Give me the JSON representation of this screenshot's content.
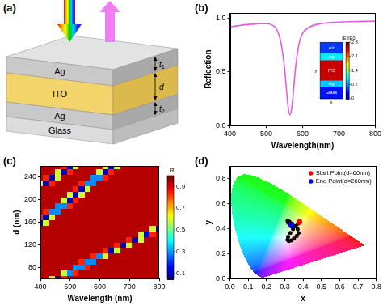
{
  "diagram": {
    "panel": "(a)",
    "layers": [
      {
        "label": "Ag",
        "thickness": "t1"
      },
      {
        "label": "ITO",
        "thickness": "d"
      },
      {
        "label": "Ag",
        "thickness": "t2"
      },
      {
        "label": "Glass"
      }
    ]
  },
  "chart_data": [
    {
      "panel": "(b)",
      "type": "line",
      "x_label": "Wavelength(nm)",
      "y_label": "Reflection",
      "x": [
        400,
        420,
        440,
        460,
        480,
        500,
        520,
        530,
        540,
        550,
        555,
        560,
        565,
        570,
        575,
        580,
        590,
        600,
        620,
        650,
        700,
        750,
        800
      ],
      "values": [
        0.92,
        0.93,
        0.94,
        0.945,
        0.95,
        0.95,
        0.93,
        0.89,
        0.78,
        0.55,
        0.36,
        0.18,
        0.1,
        0.16,
        0.33,
        0.52,
        0.76,
        0.86,
        0.92,
        0.95,
        0.965,
        0.97,
        0.975
      ],
      "color": "#e15ce1",
      "xlim": [
        400,
        800
      ],
      "xticks": [
        400,
        500,
        600,
        700,
        800
      ],
      "ylim": [
        0,
        1.05
      ],
      "yticks": [
        {
          "value": 0,
          "label": "0.0"
        },
        0.5,
        {
          "value": 1,
          "label": "1.0"
        }
      ],
      "grid": false,
      "inset": {
        "type": "heatmap",
        "x_label": "x",
        "y_label": "y",
        "layers": [
          {
            "label": "Air",
            "value": 0.5
          },
          {
            "label": "Ag",
            "value": 1.0
          },
          {
            "label": "ITO",
            "value": 2.6
          },
          {
            "label": "Ag",
            "value": 0.9
          },
          {
            "label": "Glass",
            "value": 0.4
          }
        ],
        "colorbar": {
          "label": "|E|/|E0|",
          "range": [
            0,
            2.8
          ],
          "ticks": [
            0,
            0.7,
            1.4,
            2.1,
            2.8
          ]
        }
      }
    },
    {
      "panel": "(c)",
      "type": "heatmap",
      "x_label": "Wavelength (nm)",
      "y_label": "d (nm)",
      "xlim": [
        400,
        800
      ],
      "xticks": [
        400,
        500,
        600,
        700,
        800
      ],
      "ylim": [
        60,
        260
      ],
      "yticks": [
        80,
        120,
        160,
        200,
        240
      ],
      "grid": false,
      "cells": {
        "x": [
          400,
          420,
          440,
          460,
          480,
          500,
          520,
          540,
          560,
          580,
          600,
          620,
          640,
          660,
          680,
          700,
          720,
          740,
          760,
          780,
          800
        ],
        "y": [
          60,
          70,
          80,
          90,
          100,
          110,
          120,
          130,
          140,
          150,
          160,
          170,
          180,
          190,
          200,
          210,
          220,
          230,
          240,
          250,
          260
        ],
        "values": [
          [
            0.95,
            0.95,
            0.6,
            0.1,
            0.85,
            0.95,
            0.95,
            0.95,
            0.95,
            0.95,
            0.95,
            0.95,
            0.95,
            0.95,
            0.95,
            0.95,
            0.95,
            0.95,
            0.95,
            0.95,
            0.95
          ],
          [
            0.95,
            0.95,
            0.95,
            0.95,
            0.6,
            0.3,
            0.85,
            0.95,
            0.95,
            0.95,
            0.95,
            0.95,
            0.95,
            0.95,
            0.95,
            0.95,
            0.95,
            0.95,
            0.95,
            0.95,
            0.95
          ],
          [
            0.95,
            0.95,
            0.95,
            0.95,
            0.95,
            0.95,
            0.3,
            0.3,
            0.85,
            0.95,
            0.95,
            0.95,
            0.95,
            0.95,
            0.95,
            0.95,
            0.95,
            0.95,
            0.95,
            0.95,
            0.95
          ],
          [
            0.95,
            0.95,
            0.95,
            0.95,
            0.95,
            0.95,
            0.95,
            0.85,
            0.3,
            0.3,
            0.95,
            0.95,
            0.95,
            0.95,
            0.95,
            0.95,
            0.95,
            0.95,
            0.95,
            0.95,
            0.95
          ],
          [
            0.95,
            0.95,
            0.95,
            0.95,
            0.95,
            0.95,
            0.95,
            0.95,
            0.95,
            0.85,
            0.3,
            0.6,
            0.95,
            0.95,
            0.95,
            0.95,
            0.95,
            0.95,
            0.95,
            0.95,
            0.95
          ],
          [
            0.95,
            0.95,
            0.95,
            0.95,
            0.95,
            0.95,
            0.95,
            0.95,
            0.95,
            0.95,
            0.95,
            0.85,
            0.1,
            0.6,
            0.95,
            0.95,
            0.95,
            0.95,
            0.95,
            0.95,
            0.95
          ],
          [
            0.95,
            0.95,
            0.95,
            0.95,
            0.95,
            0.95,
            0.95,
            0.95,
            0.95,
            0.95,
            0.95,
            0.95,
            0.95,
            0.85,
            0.1,
            0.6,
            0.95,
            0.95,
            0.95,
            0.95,
            0.95
          ],
          [
            0.95,
            0.95,
            0.95,
            0.95,
            0.95,
            0.95,
            0.95,
            0.95,
            0.95,
            0.95,
            0.95,
            0.95,
            0.95,
            0.95,
            0.95,
            0.85,
            0.1,
            0.6,
            0.95,
            0.95,
            0.95
          ],
          [
            0.95,
            0.95,
            0.95,
            0.95,
            0.95,
            0.95,
            0.95,
            0.95,
            0.95,
            0.95,
            0.95,
            0.95,
            0.95,
            0.95,
            0.95,
            0.95,
            0.95,
            0.6,
            0.1,
            0.85,
            0.95
          ],
          [
            0.95,
            0.95,
            0.95,
            0.95,
            0.95,
            0.95,
            0.95,
            0.95,
            0.95,
            0.95,
            0.95,
            0.95,
            0.95,
            0.95,
            0.95,
            0.95,
            0.95,
            0.95,
            0.95,
            0.6,
            0.1
          ],
          [
            0.1,
            0.6,
            0.95,
            0.95,
            0.95,
            0.95,
            0.95,
            0.95,
            0.95,
            0.95,
            0.95,
            0.95,
            0.95,
            0.95,
            0.95,
            0.95,
            0.95,
            0.95,
            0.95,
            0.95,
            0.95
          ],
          [
            0.85,
            0.1,
            0.6,
            0.95,
            0.95,
            0.95,
            0.95,
            0.95,
            0.95,
            0.95,
            0.95,
            0.95,
            0.95,
            0.95,
            0.95,
            0.95,
            0.95,
            0.95,
            0.95,
            0.95,
            0.95
          ],
          [
            0.95,
            0.85,
            0.3,
            0.3,
            0.95,
            0.95,
            0.95,
            0.95,
            0.95,
            0.95,
            0.95,
            0.95,
            0.95,
            0.95,
            0.95,
            0.95,
            0.95,
            0.95,
            0.95,
            0.95,
            0.95
          ],
          [
            0.95,
            0.95,
            0.95,
            0.3,
            0.3,
            0.85,
            0.95,
            0.95,
            0.95,
            0.95,
            0.95,
            0.95,
            0.95,
            0.95,
            0.95,
            0.95,
            0.95,
            0.95,
            0.95,
            0.95,
            0.95
          ],
          [
            0.95,
            0.95,
            0.95,
            0.95,
            0.6,
            0.1,
            0.85,
            0.95,
            0.95,
            0.95,
            0.95,
            0.95,
            0.95,
            0.95,
            0.95,
            0.95,
            0.95,
            0.95,
            0.95,
            0.95,
            0.95
          ],
          [
            0.95,
            0.95,
            0.95,
            0.95,
            0.95,
            0.6,
            0.1,
            0.6,
            0.95,
            0.95,
            0.95,
            0.95,
            0.95,
            0.95,
            0.95,
            0.95,
            0.95,
            0.95,
            0.95,
            0.95,
            0.95
          ],
          [
            0.95,
            0.95,
            0.95,
            0.95,
            0.95,
            0.95,
            0.85,
            0.1,
            0.6,
            0.95,
            0.95,
            0.95,
            0.95,
            0.95,
            0.95,
            0.95,
            0.95,
            0.95,
            0.95,
            0.95,
            0.95
          ],
          [
            0.6,
            0.1,
            0.85,
            0.95,
            0.95,
            0.95,
            0.95,
            0.85,
            0.3,
            0.3,
            0.95,
            0.95,
            0.95,
            0.95,
            0.95,
            0.95,
            0.95,
            0.95,
            0.95,
            0.95,
            0.95
          ],
          [
            0.95,
            0.85,
            0.1,
            0.6,
            0.95,
            0.95,
            0.95,
            0.95,
            0.95,
            0.3,
            0.3,
            0.85,
            0.95,
            0.95,
            0.95,
            0.95,
            0.95,
            0.95,
            0.95,
            0.95,
            0.95
          ],
          [
            0.95,
            0.95,
            0.95,
            0.6,
            0.1,
            0.85,
            0.95,
            0.95,
            0.95,
            0.95,
            0.6,
            0.1,
            0.85,
            0.95,
            0.95,
            0.95,
            0.95,
            0.95,
            0.95,
            0.95,
            0.95
          ],
          [
            0.95,
            0.95,
            0.95,
            0.95,
            0.85,
            0.1,
            0.6,
            0.95,
            0.95,
            0.95,
            0.95,
            0.6,
            0.1,
            0.6,
            0.95,
            0.95,
            0.95,
            0.95,
            0.95,
            0.95,
            0.95
          ]
        ]
      },
      "colorbar": {
        "label": "R",
        "range": [
          0.05,
          1.0
        ],
        "ticks": [
          0.1,
          0.3,
          0.5,
          0.7,
          0.9
        ]
      }
    },
    {
      "panel": "(d)",
      "type": "scatter",
      "x_label": "x",
      "y_label": "y",
      "xlim": [
        0,
        0.8
      ],
      "xticks": [
        {
          "value": 0,
          "label": "0.0"
        },
        0.1,
        0.2,
        0.3,
        0.4,
        0.5,
        0.6,
        0.7,
        0.8
      ],
      "ylim": [
        0,
        0.9
      ],
      "yticks": [
        {
          "value": 0,
          "label": "0.0"
        },
        0.2,
        0.4,
        0.6,
        0.8
      ],
      "grid": false,
      "legend": "top-right",
      "locus": {
        "x": [
          0.1741,
          0.144,
          0.1241,
          0.1096,
          0.0913,
          0.0687,
          0.0454,
          0.0235,
          0.0082,
          0.0039,
          0.0139,
          0.0389,
          0.0743,
          0.1142,
          0.1547,
          0.2296,
          0.3016,
          0.3731,
          0.4441,
          0.5125,
          0.5752,
          0.627,
          0.6915,
          0.7347
        ],
        "y": [
          0.005,
          0.0297,
          0.0578,
          0.0868,
          0.1327,
          0.2007,
          0.295,
          0.4127,
          0.5384,
          0.6548,
          0.7502,
          0.812,
          0.8338,
          0.8262,
          0.8059,
          0.7543,
          0.6923,
          0.6245,
          0.5547,
          0.4866,
          0.4242,
          0.3725,
          0.3083,
          0.2653
        ]
      },
      "series": [
        {
          "name": "Start Point(d=60nm)",
          "color": "#ff0000",
          "x": [
            0.38
          ],
          "y": [
            0.452
          ]
        },
        {
          "name": "End Point(d=260nm)",
          "color": "#0000ff",
          "x": [
            0.336
          ],
          "y": [
            0.425
          ]
        },
        {
          "color": "#000000",
          "x": [
            0.372,
            0.36,
            0.345,
            0.33,
            0.318,
            0.315,
            0.322,
            0.335,
            0.35,
            0.365,
            0.375,
            0.37,
            0.355,
            0.34,
            0.325,
            0.315,
            0.318,
            0.328,
            0.333
          ],
          "y": [
            0.44,
            0.42,
            0.395,
            0.365,
            0.335,
            0.31,
            0.3,
            0.305,
            0.32,
            0.34,
            0.365,
            0.395,
            0.42,
            0.44,
            0.455,
            0.462,
            0.448,
            0.438,
            0.43
          ]
        }
      ]
    }
  ]
}
